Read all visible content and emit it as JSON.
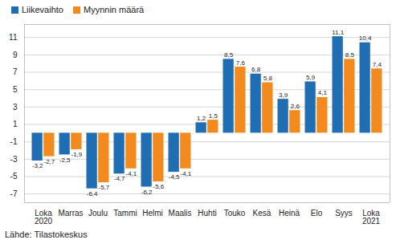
{
  "chart_data": {
    "type": "bar",
    "categories": [
      "Loka\n2020",
      "Marras",
      "Joulu",
      "Tammi",
      "Helmi",
      "Maalis",
      "Huhti",
      "Touko",
      "Kesä",
      "Heinä",
      "Elo",
      "Syys",
      "Loka\n2021"
    ],
    "series": [
      {
        "name": "Liikevaihto",
        "color": "#1f6eb4",
        "values": [
          -3.2,
          -2.5,
          -6.4,
          -4.7,
          -6.2,
          -4.5,
          1.2,
          8.5,
          6.8,
          3.9,
          5.9,
          11.1,
          10.4
        ],
        "value_labels": [
          "-3,2",
          "-2,5",
          "-6,4",
          "-4,7",
          "-6,2",
          "-4,5",
          "1,2",
          "8,5",
          "6,8",
          "3,9",
          "5,9",
          "11,1",
          "10,4"
        ]
      },
      {
        "name": "Myynnin määrä",
        "color": "#f28a1e",
        "values": [
          -2.7,
          -1.9,
          -5.7,
          -4.1,
          -5.6,
          -4.1,
          1.5,
          7.6,
          5.8,
          2.6,
          4.1,
          8.5,
          7.4
        ],
        "value_labels": [
          "-2,7",
          "-1,9",
          "-5,7",
          "-4,1",
          "-5,6",
          "-4,1",
          "1,5",
          "7,6",
          "5,8",
          "2,6",
          "4,1",
          "8,5",
          "7,4"
        ]
      }
    ],
    "ylim": [
      -8,
      12.5
    ],
    "yticks": [
      -7,
      -5,
      -3,
      -1,
      1,
      3,
      5,
      7,
      9,
      11
    ],
    "grid": true,
    "data_labels": true,
    "legend": "top-left",
    "caption": "Lähde: Tilastokeskus"
  }
}
